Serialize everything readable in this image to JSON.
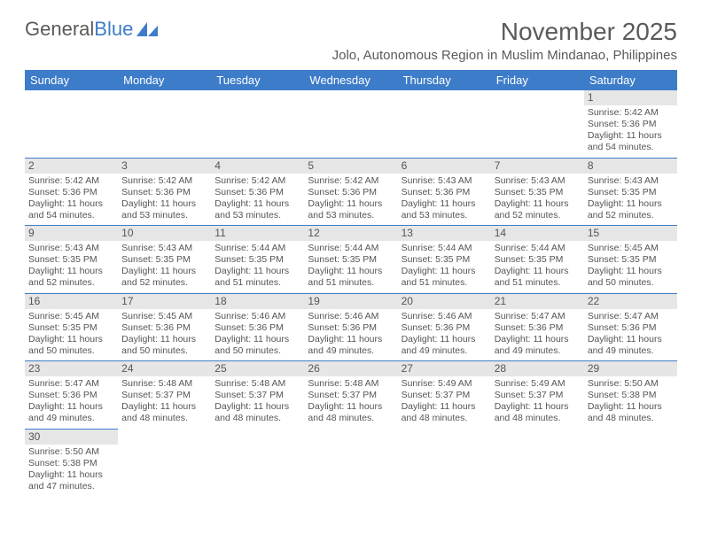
{
  "logo": {
    "text_a": "General",
    "text_b": "Blue",
    "shape_color": "#3d7cc9"
  },
  "header": {
    "title": "November 2025",
    "subtitle": "Jolo, Autonomous Region in Muslim Mindanao, Philippines"
  },
  "colors": {
    "header_bg": "#3d7cc9",
    "header_text": "#ffffff",
    "daynum_bg": "#e6e6e6",
    "body_text": "#555555",
    "rule": "#3d7cc9"
  },
  "weekdays": [
    "Sunday",
    "Monday",
    "Tuesday",
    "Wednesday",
    "Thursday",
    "Friday",
    "Saturday"
  ],
  "weeks": [
    [
      null,
      null,
      null,
      null,
      null,
      null,
      {
        "d": "1",
        "sr": "Sunrise: 5:42 AM",
        "ss": "Sunset: 5:36 PM",
        "dl": "Daylight: 11 hours and 54 minutes."
      }
    ],
    [
      {
        "d": "2",
        "sr": "Sunrise: 5:42 AM",
        "ss": "Sunset: 5:36 PM",
        "dl": "Daylight: 11 hours and 54 minutes."
      },
      {
        "d": "3",
        "sr": "Sunrise: 5:42 AM",
        "ss": "Sunset: 5:36 PM",
        "dl": "Daylight: 11 hours and 53 minutes."
      },
      {
        "d": "4",
        "sr": "Sunrise: 5:42 AM",
        "ss": "Sunset: 5:36 PM",
        "dl": "Daylight: 11 hours and 53 minutes."
      },
      {
        "d": "5",
        "sr": "Sunrise: 5:42 AM",
        "ss": "Sunset: 5:36 PM",
        "dl": "Daylight: 11 hours and 53 minutes."
      },
      {
        "d": "6",
        "sr": "Sunrise: 5:43 AM",
        "ss": "Sunset: 5:36 PM",
        "dl": "Daylight: 11 hours and 53 minutes."
      },
      {
        "d": "7",
        "sr": "Sunrise: 5:43 AM",
        "ss": "Sunset: 5:35 PM",
        "dl": "Daylight: 11 hours and 52 minutes."
      },
      {
        "d": "8",
        "sr": "Sunrise: 5:43 AM",
        "ss": "Sunset: 5:35 PM",
        "dl": "Daylight: 11 hours and 52 minutes."
      }
    ],
    [
      {
        "d": "9",
        "sr": "Sunrise: 5:43 AM",
        "ss": "Sunset: 5:35 PM",
        "dl": "Daylight: 11 hours and 52 minutes."
      },
      {
        "d": "10",
        "sr": "Sunrise: 5:43 AM",
        "ss": "Sunset: 5:35 PM",
        "dl": "Daylight: 11 hours and 52 minutes."
      },
      {
        "d": "11",
        "sr": "Sunrise: 5:44 AM",
        "ss": "Sunset: 5:35 PM",
        "dl": "Daylight: 11 hours and 51 minutes."
      },
      {
        "d": "12",
        "sr": "Sunrise: 5:44 AM",
        "ss": "Sunset: 5:35 PM",
        "dl": "Daylight: 11 hours and 51 minutes."
      },
      {
        "d": "13",
        "sr": "Sunrise: 5:44 AM",
        "ss": "Sunset: 5:35 PM",
        "dl": "Daylight: 11 hours and 51 minutes."
      },
      {
        "d": "14",
        "sr": "Sunrise: 5:44 AM",
        "ss": "Sunset: 5:35 PM",
        "dl": "Daylight: 11 hours and 51 minutes."
      },
      {
        "d": "15",
        "sr": "Sunrise: 5:45 AM",
        "ss": "Sunset: 5:35 PM",
        "dl": "Daylight: 11 hours and 50 minutes."
      }
    ],
    [
      {
        "d": "16",
        "sr": "Sunrise: 5:45 AM",
        "ss": "Sunset: 5:35 PM",
        "dl": "Daylight: 11 hours and 50 minutes."
      },
      {
        "d": "17",
        "sr": "Sunrise: 5:45 AM",
        "ss": "Sunset: 5:36 PM",
        "dl": "Daylight: 11 hours and 50 minutes."
      },
      {
        "d": "18",
        "sr": "Sunrise: 5:46 AM",
        "ss": "Sunset: 5:36 PM",
        "dl": "Daylight: 11 hours and 50 minutes."
      },
      {
        "d": "19",
        "sr": "Sunrise: 5:46 AM",
        "ss": "Sunset: 5:36 PM",
        "dl": "Daylight: 11 hours and 49 minutes."
      },
      {
        "d": "20",
        "sr": "Sunrise: 5:46 AM",
        "ss": "Sunset: 5:36 PM",
        "dl": "Daylight: 11 hours and 49 minutes."
      },
      {
        "d": "21",
        "sr": "Sunrise: 5:47 AM",
        "ss": "Sunset: 5:36 PM",
        "dl": "Daylight: 11 hours and 49 minutes."
      },
      {
        "d": "22",
        "sr": "Sunrise: 5:47 AM",
        "ss": "Sunset: 5:36 PM",
        "dl": "Daylight: 11 hours and 49 minutes."
      }
    ],
    [
      {
        "d": "23",
        "sr": "Sunrise: 5:47 AM",
        "ss": "Sunset: 5:36 PM",
        "dl": "Daylight: 11 hours and 49 minutes."
      },
      {
        "d": "24",
        "sr": "Sunrise: 5:48 AM",
        "ss": "Sunset: 5:37 PM",
        "dl": "Daylight: 11 hours and 48 minutes."
      },
      {
        "d": "25",
        "sr": "Sunrise: 5:48 AM",
        "ss": "Sunset: 5:37 PM",
        "dl": "Daylight: 11 hours and 48 minutes."
      },
      {
        "d": "26",
        "sr": "Sunrise: 5:48 AM",
        "ss": "Sunset: 5:37 PM",
        "dl": "Daylight: 11 hours and 48 minutes."
      },
      {
        "d": "27",
        "sr": "Sunrise: 5:49 AM",
        "ss": "Sunset: 5:37 PM",
        "dl": "Daylight: 11 hours and 48 minutes."
      },
      {
        "d": "28",
        "sr": "Sunrise: 5:49 AM",
        "ss": "Sunset: 5:37 PM",
        "dl": "Daylight: 11 hours and 48 minutes."
      },
      {
        "d": "29",
        "sr": "Sunrise: 5:50 AM",
        "ss": "Sunset: 5:38 PM",
        "dl": "Daylight: 11 hours and 48 minutes."
      }
    ],
    [
      {
        "d": "30",
        "sr": "Sunrise: 5:50 AM",
        "ss": "Sunset: 5:38 PM",
        "dl": "Daylight: 11 hours and 47 minutes."
      },
      null,
      null,
      null,
      null,
      null,
      null
    ]
  ]
}
